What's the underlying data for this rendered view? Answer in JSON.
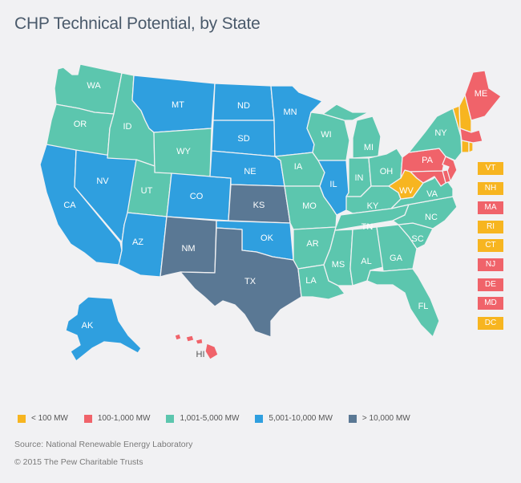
{
  "title": "CHP Technical Potential, by State",
  "categories": {
    "c1": {
      "label": "< 100 MW",
      "color": "#f7b520"
    },
    "c2": {
      "label": "100-1,000 MW",
      "color": "#f0636a"
    },
    "c3": {
      "label": "1,001-5,000 MW",
      "color": "#5cc6ae"
    },
    "c4": {
      "label": "5,001-10,000 MW",
      "color": "#2f9fdf"
    },
    "c5": {
      "label": "> 10,000 MW",
      "color": "#5a7894"
    }
  },
  "states": {
    "WA": {
      "name": "WA",
      "cat": "c3"
    },
    "OR": {
      "name": "OR",
      "cat": "c3"
    },
    "CA": {
      "name": "CA",
      "cat": "c4"
    },
    "NV": {
      "name": "NV",
      "cat": "c4"
    },
    "ID": {
      "name": "ID",
      "cat": "c3"
    },
    "MT": {
      "name": "MT",
      "cat": "c4"
    },
    "WY": {
      "name": "WY",
      "cat": "c3"
    },
    "UT": {
      "name": "UT",
      "cat": "c3"
    },
    "AZ": {
      "name": "AZ",
      "cat": "c4"
    },
    "CO": {
      "name": "CO",
      "cat": "c4"
    },
    "NM": {
      "name": "NM",
      "cat": "c5"
    },
    "ND": {
      "name": "ND",
      "cat": "c4"
    },
    "SD": {
      "name": "SD",
      "cat": "c4"
    },
    "NE": {
      "name": "NE",
      "cat": "c4"
    },
    "KS": {
      "name": "KS",
      "cat": "c5"
    },
    "OK": {
      "name": "OK",
      "cat": "c4"
    },
    "TX": {
      "name": "TX",
      "cat": "c5"
    },
    "MN": {
      "name": "MN",
      "cat": "c4"
    },
    "IA": {
      "name": "IA",
      "cat": "c3"
    },
    "MO": {
      "name": "MO",
      "cat": "c3"
    },
    "AR": {
      "name": "AR",
      "cat": "c3"
    },
    "LA": {
      "name": "LA",
      "cat": "c3"
    },
    "WI": {
      "name": "WI",
      "cat": "c3"
    },
    "IL": {
      "name": "IL",
      "cat": "c4"
    },
    "MI": {
      "name": "MI",
      "cat": "c3"
    },
    "IN": {
      "name": "IN",
      "cat": "c3"
    },
    "OH": {
      "name": "OH",
      "cat": "c3"
    },
    "KY": {
      "name": "KY",
      "cat": "c3"
    },
    "TN": {
      "name": "TN",
      "cat": "c3"
    },
    "MS": {
      "name": "MS",
      "cat": "c3"
    },
    "AL": {
      "name": "AL",
      "cat": "c3"
    },
    "GA": {
      "name": "GA",
      "cat": "c3"
    },
    "FL": {
      "name": "FL",
      "cat": "c3"
    },
    "SC": {
      "name": "SC",
      "cat": "c3"
    },
    "NC": {
      "name": "NC",
      "cat": "c3"
    },
    "VA": {
      "name": "VA",
      "cat": "c3"
    },
    "WV": {
      "name": "WV",
      "cat": "c1"
    },
    "PA": {
      "name": "PA",
      "cat": "c2"
    },
    "NY": {
      "name": "NY",
      "cat": "c3"
    },
    "NJ": {
      "name": "NJ",
      "cat": "c2"
    },
    "DE": {
      "name": "DE",
      "cat": "c2"
    },
    "MD": {
      "name": "MD",
      "cat": "c2"
    },
    "VT": {
      "name": "VT",
      "cat": "c1"
    },
    "NH": {
      "name": "NH",
      "cat": "c1"
    },
    "ME": {
      "name": "ME",
      "cat": "c2"
    },
    "MA": {
      "name": "MA",
      "cat": "c2"
    },
    "CT": {
      "name": "CT",
      "cat": "c1"
    },
    "RI": {
      "name": "RI",
      "cat": "c1"
    },
    "AK": {
      "name": "AK",
      "cat": "c4"
    },
    "HI": {
      "name": "HI",
      "cat": "c2"
    }
  },
  "small_states": [
    {
      "name": "VT",
      "cat": "c1"
    },
    {
      "name": "NH",
      "cat": "c1"
    },
    {
      "name": "MA",
      "cat": "c2"
    },
    {
      "name": "RI",
      "cat": "c1"
    },
    {
      "name": "CT",
      "cat": "c1"
    },
    {
      "name": "NJ",
      "cat": "c2"
    },
    {
      "name": "DE",
      "cat": "c2"
    },
    {
      "name": "MD",
      "cat": "c2"
    },
    {
      "name": "DC",
      "cat": "c1"
    }
  ],
  "source": "Source: National Renewable Energy Laboratory",
  "copyright": "© 2015 The Pew Charitable Trusts"
}
